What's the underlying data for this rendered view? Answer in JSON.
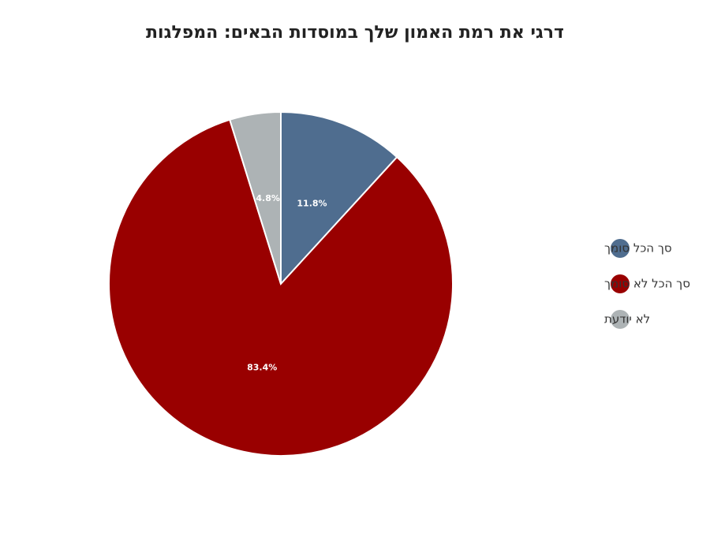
{
  "chart_data": {
    "type": "pie",
    "title": "דרגי את רמת האמון שלך במוסדות הבאים: המפלגות",
    "categories": [
      "סך הכל סומך",
      "סך הכל לא סומך",
      "לא יודעת"
    ],
    "values": [
      11.8,
      83.4,
      4.8
    ],
    "value_labels": [
      "11.8%",
      "83.4%",
      "4.8%"
    ],
    "colors": [
      "#4f6d8f",
      "#990000",
      "#adb3b5"
    ],
    "legend": "right"
  }
}
